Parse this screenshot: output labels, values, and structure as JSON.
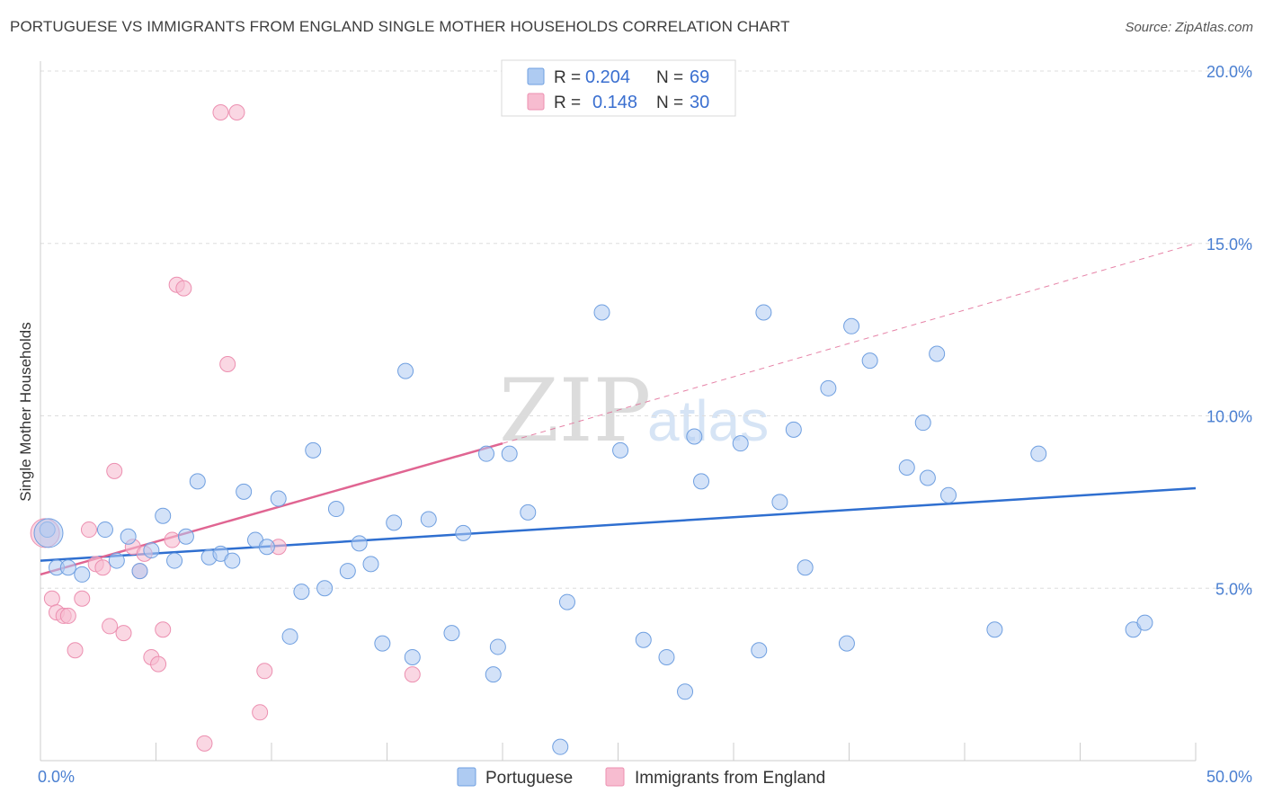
{
  "title": "PORTUGUESE VS IMMIGRANTS FROM ENGLAND SINGLE MOTHER HOUSEHOLDS CORRELATION CHART",
  "source": "Source: ZipAtlas.com",
  "watermark": {
    "part1": "ZIP",
    "part2": "atlas"
  },
  "legend_top": {
    "rows": [
      {
        "r_label": "R =",
        "r_value": "0.204",
        "n_label": "N =",
        "n_value": "69",
        "color": "#aecbf2"
      },
      {
        "r_label": "R =",
        "r_value": "0.148",
        "n_label": "N =",
        "n_value": "30",
        "color": "#f7bcd0"
      }
    ]
  },
  "colors": {
    "blue_fill": "#aecbf2",
    "blue_stroke": "#6f9fe0",
    "blue_line": "#2f6fd0",
    "pink_fill": "#f7bcd0",
    "pink_stroke": "#ec8fb0",
    "pink_line": "#e06592",
    "tick_text": "#4a7fd1",
    "grid": "#dddddd"
  },
  "chart_data": {
    "type": "scatter",
    "title": "PORTUGUESE VS IMMIGRANTS FROM ENGLAND SINGLE MOTHER HOUSEHOLDS CORRELATION CHART",
    "xlabel": "",
    "ylabel": "Single Mother Households",
    "xlim": [
      0,
      50
    ],
    "ylim": [
      0,
      20
    ],
    "x_tick_labels": [
      "0.0%",
      "50.0%"
    ],
    "y_ticks": [
      5,
      10,
      15,
      20
    ],
    "y_tick_labels": [
      "5.0%",
      "10.0%",
      "15.0%",
      "20.0%"
    ],
    "grid": "horizontal dashed",
    "legend_position": "top-center and bottom",
    "series": [
      {
        "name": "Portuguese",
        "color": "#aecbf2",
        "R": 0.204,
        "N": 69,
        "trend": {
          "x": [
            0,
            50
          ],
          "y": [
            5.8,
            7.9
          ]
        },
        "points": [
          [
            0.3,
            6.7
          ],
          [
            0.7,
            5.6
          ],
          [
            1.2,
            5.6
          ],
          [
            1.8,
            5.4
          ],
          [
            2.8,
            6.7
          ],
          [
            3.3,
            5.8
          ],
          [
            3.8,
            6.5
          ],
          [
            4.3,
            5.5
          ],
          [
            4.8,
            6.1
          ],
          [
            5.3,
            7.1
          ],
          [
            5.8,
            5.8
          ],
          [
            6.3,
            6.5
          ],
          [
            6.8,
            8.1
          ],
          [
            7.3,
            5.9
          ],
          [
            7.8,
            6.0
          ],
          [
            8.3,
            5.8
          ],
          [
            8.8,
            7.8
          ],
          [
            9.3,
            6.4
          ],
          [
            9.8,
            6.2
          ],
          [
            10.3,
            7.6
          ],
          [
            10.8,
            3.6
          ],
          [
            11.3,
            4.9
          ],
          [
            11.8,
            9.0
          ],
          [
            12.3,
            5.0
          ],
          [
            12.8,
            7.3
          ],
          [
            13.3,
            5.5
          ],
          [
            13.8,
            6.3
          ],
          [
            14.3,
            5.7
          ],
          [
            14.8,
            3.4
          ],
          [
            15.3,
            6.9
          ],
          [
            15.8,
            11.3
          ],
          [
            16.1,
            3.0
          ],
          [
            16.8,
            7.0
          ],
          [
            17.8,
            3.7
          ],
          [
            18.3,
            6.6
          ],
          [
            19.3,
            8.9
          ],
          [
            19.6,
            2.5
          ],
          [
            19.8,
            3.3
          ],
          [
            20.3,
            8.9
          ],
          [
            21.1,
            7.2
          ],
          [
            22.5,
            0.4
          ],
          [
            22.8,
            4.6
          ],
          [
            24.3,
            13.0
          ],
          [
            25.1,
            9.0
          ],
          [
            26.1,
            3.5
          ],
          [
            27.1,
            3.0
          ],
          [
            27.9,
            2.0
          ],
          [
            28.3,
            9.4
          ],
          [
            28.6,
            8.1
          ],
          [
            30.3,
            9.2
          ],
          [
            31.1,
            3.2
          ],
          [
            31.3,
            13.0
          ],
          [
            32.0,
            7.5
          ],
          [
            32.6,
            9.6
          ],
          [
            33.1,
            5.6
          ],
          [
            34.1,
            10.8
          ],
          [
            34.9,
            3.4
          ],
          [
            35.1,
            12.6
          ],
          [
            35.9,
            11.6
          ],
          [
            37.5,
            8.5
          ],
          [
            38.2,
            9.8
          ],
          [
            38.4,
            8.2
          ],
          [
            38.8,
            11.8
          ],
          [
            39.3,
            7.7
          ],
          [
            41.3,
            3.8
          ],
          [
            43.2,
            8.9
          ],
          [
            47.3,
            3.8
          ],
          [
            47.8,
            4.0
          ],
          [
            0.35,
            6.6
          ]
        ]
      },
      {
        "name": "Immigrants from England",
        "color": "#f7bcd0",
        "R": 0.148,
        "N": 30,
        "trend": {
          "x": [
            0,
            20
          ],
          "y": [
            5.4,
            9.2
          ],
          "x_extended": [
            20,
            50
          ],
          "y_extended": [
            9.2,
            15.0
          ]
        },
        "points": [
          [
            0.2,
            6.6
          ],
          [
            0.5,
            4.7
          ],
          [
            0.7,
            4.3
          ],
          [
            1.0,
            4.2
          ],
          [
            1.2,
            4.2
          ],
          [
            1.5,
            3.2
          ],
          [
            1.8,
            4.7
          ],
          [
            2.1,
            6.7
          ],
          [
            2.4,
            5.7
          ],
          [
            2.7,
            5.6
          ],
          [
            3.0,
            3.9
          ],
          [
            3.2,
            8.4
          ],
          [
            3.6,
            3.7
          ],
          [
            4.0,
            6.2
          ],
          [
            4.3,
            5.5
          ],
          [
            4.5,
            6.0
          ],
          [
            4.8,
            3.0
          ],
          [
            5.1,
            2.8
          ],
          [
            5.3,
            3.8
          ],
          [
            5.7,
            6.4
          ],
          [
            5.9,
            13.8
          ],
          [
            6.2,
            13.7
          ],
          [
            7.1,
            0.5
          ],
          [
            7.8,
            18.8
          ],
          [
            8.1,
            11.5
          ],
          [
            8.5,
            18.8
          ],
          [
            9.5,
            1.4
          ],
          [
            9.7,
            2.6
          ],
          [
            10.3,
            6.2
          ],
          [
            16.1,
            2.5
          ]
        ]
      }
    ]
  },
  "legend_bottom": {
    "items": [
      {
        "label": "Portuguese",
        "color": "#aecbf2"
      },
      {
        "label": "Immigrants from England",
        "color": "#f7bcd0"
      }
    ]
  }
}
